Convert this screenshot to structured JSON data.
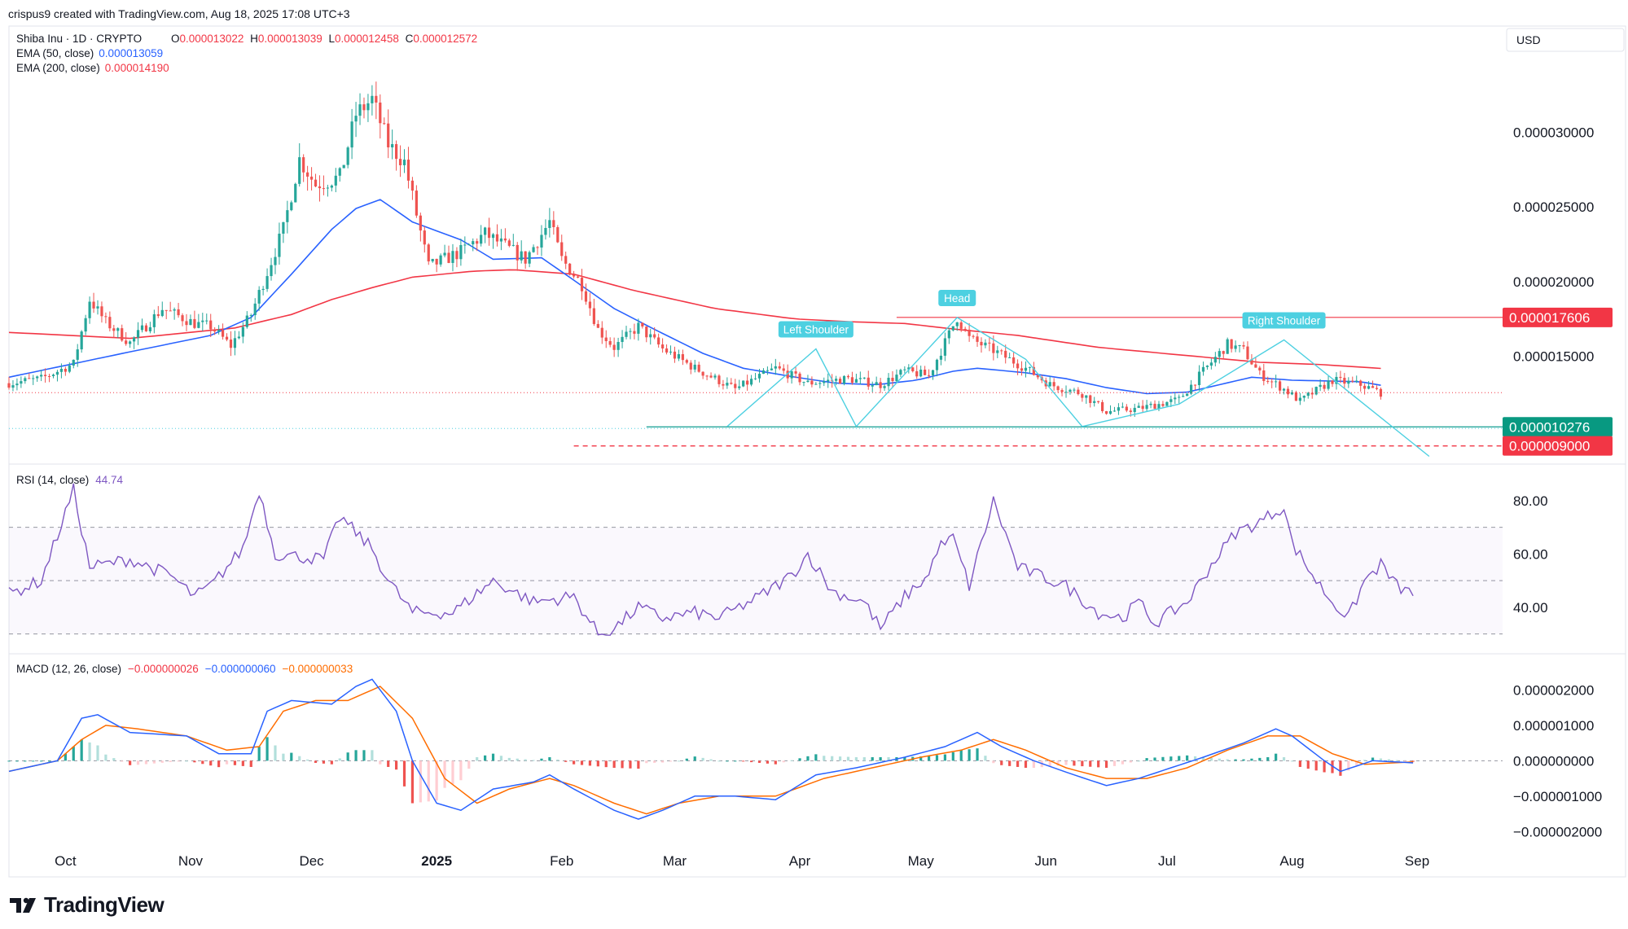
{
  "header": {
    "credit": "crispus9 created with TradingView.com, Aug 18, 2025 17:08 UTC+3",
    "symbol": "Shiba Inu · 1D · CRYPTO",
    "ohlc": [
      {
        "k": "O",
        "v": "0.000013022"
      },
      {
        "k": "H",
        "v": "0.000013039"
      },
      {
        "k": "L",
        "v": "0.000012458"
      },
      {
        "k": "C",
        "v": "0.000012572"
      }
    ],
    "ema50_label": "EMA (50, close)",
    "ema50_value": "0.000013059",
    "ema200_label": "EMA (200, close)",
    "ema200_value": "0.000014190",
    "currency": "USD"
  },
  "colors": {
    "up": "#26a69a",
    "down": "#ef5350",
    "ema50": "#2962ff",
    "ema200": "#f23645",
    "rsi": "#7e57c2",
    "macd": "#2962ff",
    "signal": "#ff6d00",
    "pattern": "#4dd0e1"
  },
  "footer": {
    "brand": "TradingView",
    "logo": "tradingview-logo-icon"
  },
  "chart_data": [
    {
      "type": "candlestick",
      "title": "Shiba Inu · 1D · CRYPTO",
      "x_ticks": [
        "Oct",
        "Nov",
        "Dec",
        "2025",
        "Feb",
        "Mar",
        "Apr",
        "May",
        "Jun",
        "Jul",
        "Aug",
        "Sep"
      ],
      "y_ticks": [
        "0.000030000",
        "0.000025000",
        "0.000020000",
        "0.000015000"
      ],
      "y_range": [
        8.6e-06,
        3.45e-05
      ],
      "price_labels": [
        {
          "value": "0.000017606",
          "num": 1.7606e-05,
          "color": "#f23645",
          "style": "solid"
        },
        {
          "value": "0.000010276",
          "num": 1.0276e-05,
          "color": "#089981",
          "style": "solid"
        },
        {
          "value": "0.000009000",
          "num": 9e-06,
          "color": "#f23645",
          "style": "dashed"
        }
      ],
      "annotations": [
        "Left Shoulder",
        "Head",
        "Right Shoulder"
      ],
      "pattern": "inverse head and shoulders",
      "last_close": 1.2572e-05
    },
    {
      "type": "line",
      "title": "RSI (14, close)",
      "last_value": "44.74",
      "y_ticks": [
        "80.00",
        "60.00",
        "40.00"
      ],
      "y_range": [
        25,
        87
      ],
      "bands": [
        70,
        50,
        30
      ]
    },
    {
      "type": "histogram+line",
      "title": "MACD (12, 26, close)",
      "values": [
        "−0.000000026",
        "−0.000000060",
        "−0.000000033"
      ],
      "y_ticks": [
        "0.000002000",
        "0.000001000",
        "0.000000000",
        "−0.000001000",
        "−0.000002000"
      ],
      "y_range": [
        -2.2e-06,
        2.4e-06
      ]
    }
  ]
}
